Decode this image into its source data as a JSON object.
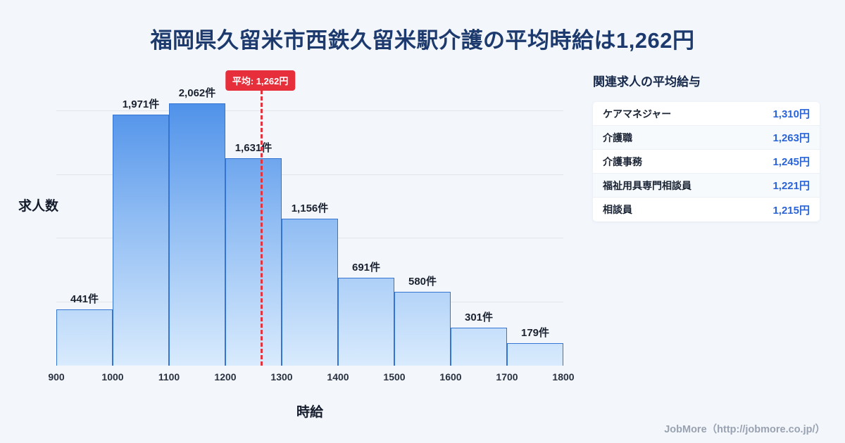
{
  "page": {
    "title": "福岡県久留米市西鉄久留米駅介護の平均時給は1,262円",
    "footer": "JobMore（http://jobmore.co.jp/）"
  },
  "chart_data": {
    "type": "bar",
    "title": "福岡県久留米市西鉄久留米駅介護の平均時給は1,262円",
    "xlabel": "時給",
    "ylabel": "求人数",
    "x_range": [
      900,
      1800
    ],
    "x_ticks": [
      "900",
      "1000",
      "1100",
      "1200",
      "1300",
      "1400",
      "1500",
      "1600",
      "1700",
      "1800"
    ],
    "bin_edges": [
      900,
      1000,
      1100,
      1200,
      1300,
      1400,
      1500,
      1600,
      1700,
      1800
    ],
    "values": [
      441,
      1971,
      2062,
      1631,
      1156,
      691,
      580,
      301,
      179
    ],
    "value_labels": [
      "441件",
      "1,971件",
      "2,062件",
      "1,631件",
      "1,156件",
      "691件",
      "580件",
      "301件",
      "179件"
    ],
    "ylim": [
      0,
      2100
    ],
    "gridline_values": [
      500,
      1000,
      1500,
      2000
    ],
    "grid": "horizontal-only",
    "legend": "none",
    "average": {
      "value": 1262,
      "label": "平均: 1,262円"
    }
  },
  "side_panel": {
    "title": "関連求人の平均給与",
    "rows": [
      {
        "label": "ケアマネジャー",
        "value": "1,310円"
      },
      {
        "label": "介護職",
        "value": "1,263円"
      },
      {
        "label": "介護事務",
        "value": "1,245円"
      },
      {
        "label": "福祉用具専門相談員",
        "value": "1,221円"
      },
      {
        "label": "相談員",
        "value": "1,215円"
      }
    ]
  },
  "colors": {
    "background": "#f3f7fc",
    "title_navy": "#1d3a6e",
    "bar_border": "#3474d2",
    "bar_gradient_top": "#4d90e9",
    "bar_gradient_bottom": "#d9ebfd",
    "average_red": "#e62f3b",
    "wage_blue": "#2a64d8",
    "footer_gray": "#99a2b0"
  }
}
